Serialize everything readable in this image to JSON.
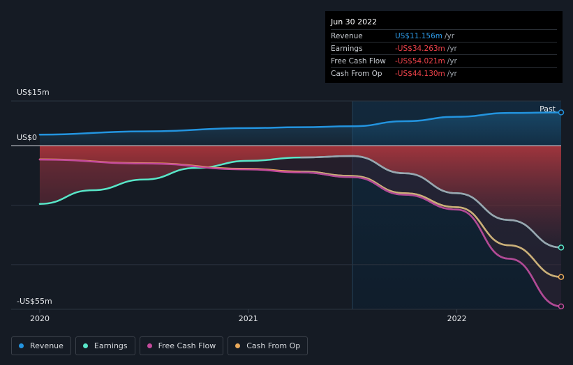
{
  "tooltip": {
    "date": "Jun 30 2022",
    "rows": [
      {
        "label": "Revenue",
        "value": "US$11.156m",
        "unit": "/yr",
        "color": "#2e9be8"
      },
      {
        "label": "Earnings",
        "value": "-US$34.263m",
        "unit": "/yr",
        "color": "#f0434b"
      },
      {
        "label": "Free Cash Flow",
        "value": "-US$54.021m",
        "unit": "/yr",
        "color": "#f0434b"
      },
      {
        "label": "Cash From Op",
        "value": "-US$44.130m",
        "unit": "/yr",
        "color": "#f0434b"
      }
    ]
  },
  "legend": [
    {
      "label": "Revenue",
      "color": "#2394df"
    },
    {
      "label": "Earnings",
      "color": "#58e6c8"
    },
    {
      "label": "Free Cash Flow",
      "color": "#c34a9b"
    },
    {
      "label": "Cash From Op",
      "color": "#e9a95a"
    }
  ],
  "chart_data": {
    "type": "line",
    "y_ticks": [
      {
        "value": 15,
        "label": "US$15m"
      },
      {
        "value": 0,
        "label": "US$0"
      },
      {
        "value": -55,
        "label": "-US$55m"
      }
    ],
    "x_ticks": [
      {
        "value": 2020.0,
        "label": "2020"
      },
      {
        "value": 2021.0,
        "label": "2021"
      },
      {
        "value": 2022.0,
        "label": "2022"
      }
    ],
    "ylim": [
      -55,
      15
    ],
    "xlim": [
      2019.97,
      2022.5
    ],
    "past_start": 2021.5,
    "past_label": "Past",
    "grid": true,
    "series": [
      {
        "name": "Revenue",
        "color": "#2394df",
        "points": [
          [
            2020.0,
            3.7
          ],
          [
            2020.5,
            4.8
          ],
          [
            2021.0,
            5.9
          ],
          [
            2021.25,
            6.2
          ],
          [
            2021.5,
            6.5
          ],
          [
            2021.75,
            8.2
          ],
          [
            2022.0,
            9.7
          ],
          [
            2022.25,
            11.0
          ],
          [
            2022.5,
            11.156
          ]
        ]
      },
      {
        "name": "Earnings",
        "color": "#58e6c8",
        "points": [
          [
            2020.0,
            -19.6
          ],
          [
            2020.25,
            -15.0
          ],
          [
            2020.5,
            -11.4
          ],
          [
            2020.75,
            -7.5
          ],
          [
            2021.0,
            -5.1
          ],
          [
            2021.25,
            -4.0
          ],
          [
            2021.5,
            -3.5
          ],
          [
            2021.75,
            -9.3
          ],
          [
            2022.0,
            -16.0
          ],
          [
            2022.25,
            -25.0
          ],
          [
            2022.5,
            -34.263
          ]
        ]
      },
      {
        "name": "Free Cash Flow",
        "color": "#c34a9b",
        "points": [
          [
            2020.0,
            -4.7
          ],
          [
            2020.5,
            -6.0
          ],
          [
            2021.0,
            -8.0
          ],
          [
            2021.25,
            -9.0
          ],
          [
            2021.5,
            -10.6
          ],
          [
            2021.75,
            -16.5
          ],
          [
            2022.0,
            -21.5
          ],
          [
            2022.25,
            -38.0
          ],
          [
            2022.5,
            -54.021
          ]
        ]
      },
      {
        "name": "Cash From Op",
        "color": "#e9a95a",
        "points": [
          [
            2020.0,
            -4.6
          ],
          [
            2020.5,
            -5.9
          ],
          [
            2021.0,
            -7.8
          ],
          [
            2021.25,
            -8.7
          ],
          [
            2021.5,
            -10.2
          ],
          [
            2021.75,
            -16.0
          ],
          [
            2022.0,
            -20.7
          ],
          [
            2022.25,
            -33.5
          ],
          [
            2022.5,
            -44.13
          ]
        ]
      }
    ]
  }
}
